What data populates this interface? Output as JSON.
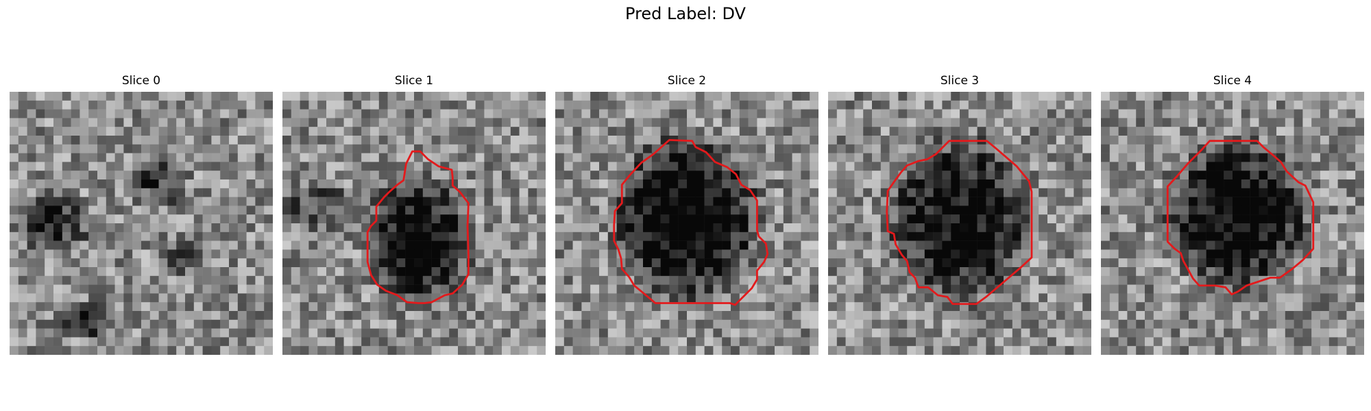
{
  "figure": {
    "title": "Pred Label: DV"
  },
  "panels": [
    {
      "title": "Slice 0",
      "has_contour": false
    },
    {
      "title": "Slice 1",
      "has_contour": true
    },
    {
      "title": "Slice 2",
      "has_contour": true
    },
    {
      "title": "Slice 3",
      "has_contour": true
    },
    {
      "title": "Slice 4",
      "has_contour": true
    }
  ],
  "colors": {
    "contour": "#e31a1c",
    "background": "#ffffff"
  }
}
